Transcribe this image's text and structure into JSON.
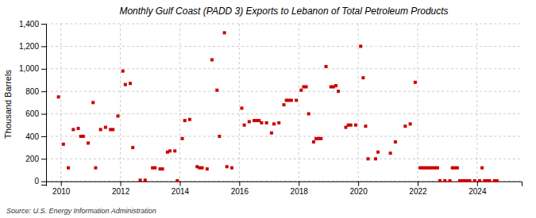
{
  "chart_data": {
    "type": "scatter",
    "title": "Monthly Gulf Coast (PADD 3) Exports to Lebanon of Total Petroleum Products",
    "ylabel": "Thousand Barrels",
    "annotations": [
      "Source: U.S. Energy Information Administration"
    ],
    "color": "#cc0000",
    "marker": "square",
    "grid": true,
    "xlim": [
      2009.5,
      2025.5
    ],
    "ylim": [
      -30,
      1400
    ],
    "xticks": [
      2010,
      2012,
      2014,
      2016,
      2018,
      2020,
      2022,
      2024
    ],
    "yticks": [
      0,
      200,
      400,
      600,
      800,
      {
        "value": 1000,
        "label": "1,000"
      },
      {
        "value": 1200,
        "label": "1,200"
      },
      {
        "value": 1400,
        "label": "1,400"
      }
    ],
    "x": [
      2009.917,
      2010.083,
      2010.25,
      2010.417,
      2010.583,
      2010.667,
      2010.75,
      2010.917,
      2011.083,
      2011.167,
      2011.333,
      2011.5,
      2011.667,
      2011.75,
      2011.917,
      2012.083,
      2012.167,
      2012.333,
      2012.417,
      2012.667,
      2012.833,
      2013.083,
      2013.167,
      2013.333,
      2013.417,
      2013.583,
      2013.667,
      2013.833,
      2013.917,
      2014.083,
      2014.167,
      2014.333,
      2014.583,
      2014.667,
      2014.75,
      2014.917,
      2015.083,
      2015.25,
      2015.333,
      2015.5,
      2015.583,
      2015.75,
      2016.083,
      2016.167,
      2016.333,
      2016.5,
      2016.583,
      2016.667,
      2016.75,
      2016.917,
      2017.083,
      2017.167,
      2017.333,
      2017.5,
      2017.583,
      2017.667,
      2017.75,
      2017.917,
      2018.083,
      2018.167,
      2018.25,
      2018.333,
      2018.5,
      2018.583,
      2018.667,
      2018.75,
      2018.917,
      2019.083,
      2019.167,
      2019.25,
      2019.333,
      2019.583,
      2019.667,
      2019.75,
      2019.917,
      2020.083,
      2020.167,
      2020.25,
      2020.333,
      2020.583,
      2020.667,
      2021.083,
      2021.25,
      2021.583,
      2021.75,
      2021.917,
      2022.083,
      2022.167,
      2022.25,
      2022.333,
      2022.417,
      2022.5,
      2022.583,
      2022.667,
      2022.75,
      2022.917,
      2023.083,
      2023.167,
      2023.25,
      2023.333,
      2023.417,
      2023.5,
      2023.583,
      2023.667,
      2023.75,
      2023.917,
      2024.083,
      2024.167,
      2024.25,
      2024.333,
      2024.417,
      2024.583,
      2024.667
    ],
    "values": [
      750,
      330,
      120,
      460,
      470,
      400,
      400,
      340,
      700,
      120,
      460,
      480,
      460,
      460,
      580,
      980,
      860,
      870,
      300,
      10,
      10,
      120,
      120,
      110,
      110,
      260,
      270,
      270,
      5,
      380,
      540,
      550,
      130,
      120,
      120,
      110,
      1080,
      810,
      400,
      1320,
      130,
      120,
      650,
      500,
      530,
      540,
      540,
      540,
      520,
      520,
      430,
      510,
      520,
      680,
      720,
      720,
      720,
      720,
      810,
      840,
      840,
      600,
      350,
      380,
      380,
      380,
      1020,
      840,
      840,
      850,
      800,
      480,
      500,
      500,
      500,
      1200,
      920,
      490,
      200,
      200,
      260,
      250,
      350,
      490,
      510,
      880,
      120,
      120,
      120,
      120,
      120,
      120,
      120,
      120,
      5,
      5,
      5,
      120,
      120,
      120,
      5,
      5,
      5,
      5,
      5,
      5,
      5,
      120,
      5,
      5,
      5,
      5,
      5
    ]
  }
}
